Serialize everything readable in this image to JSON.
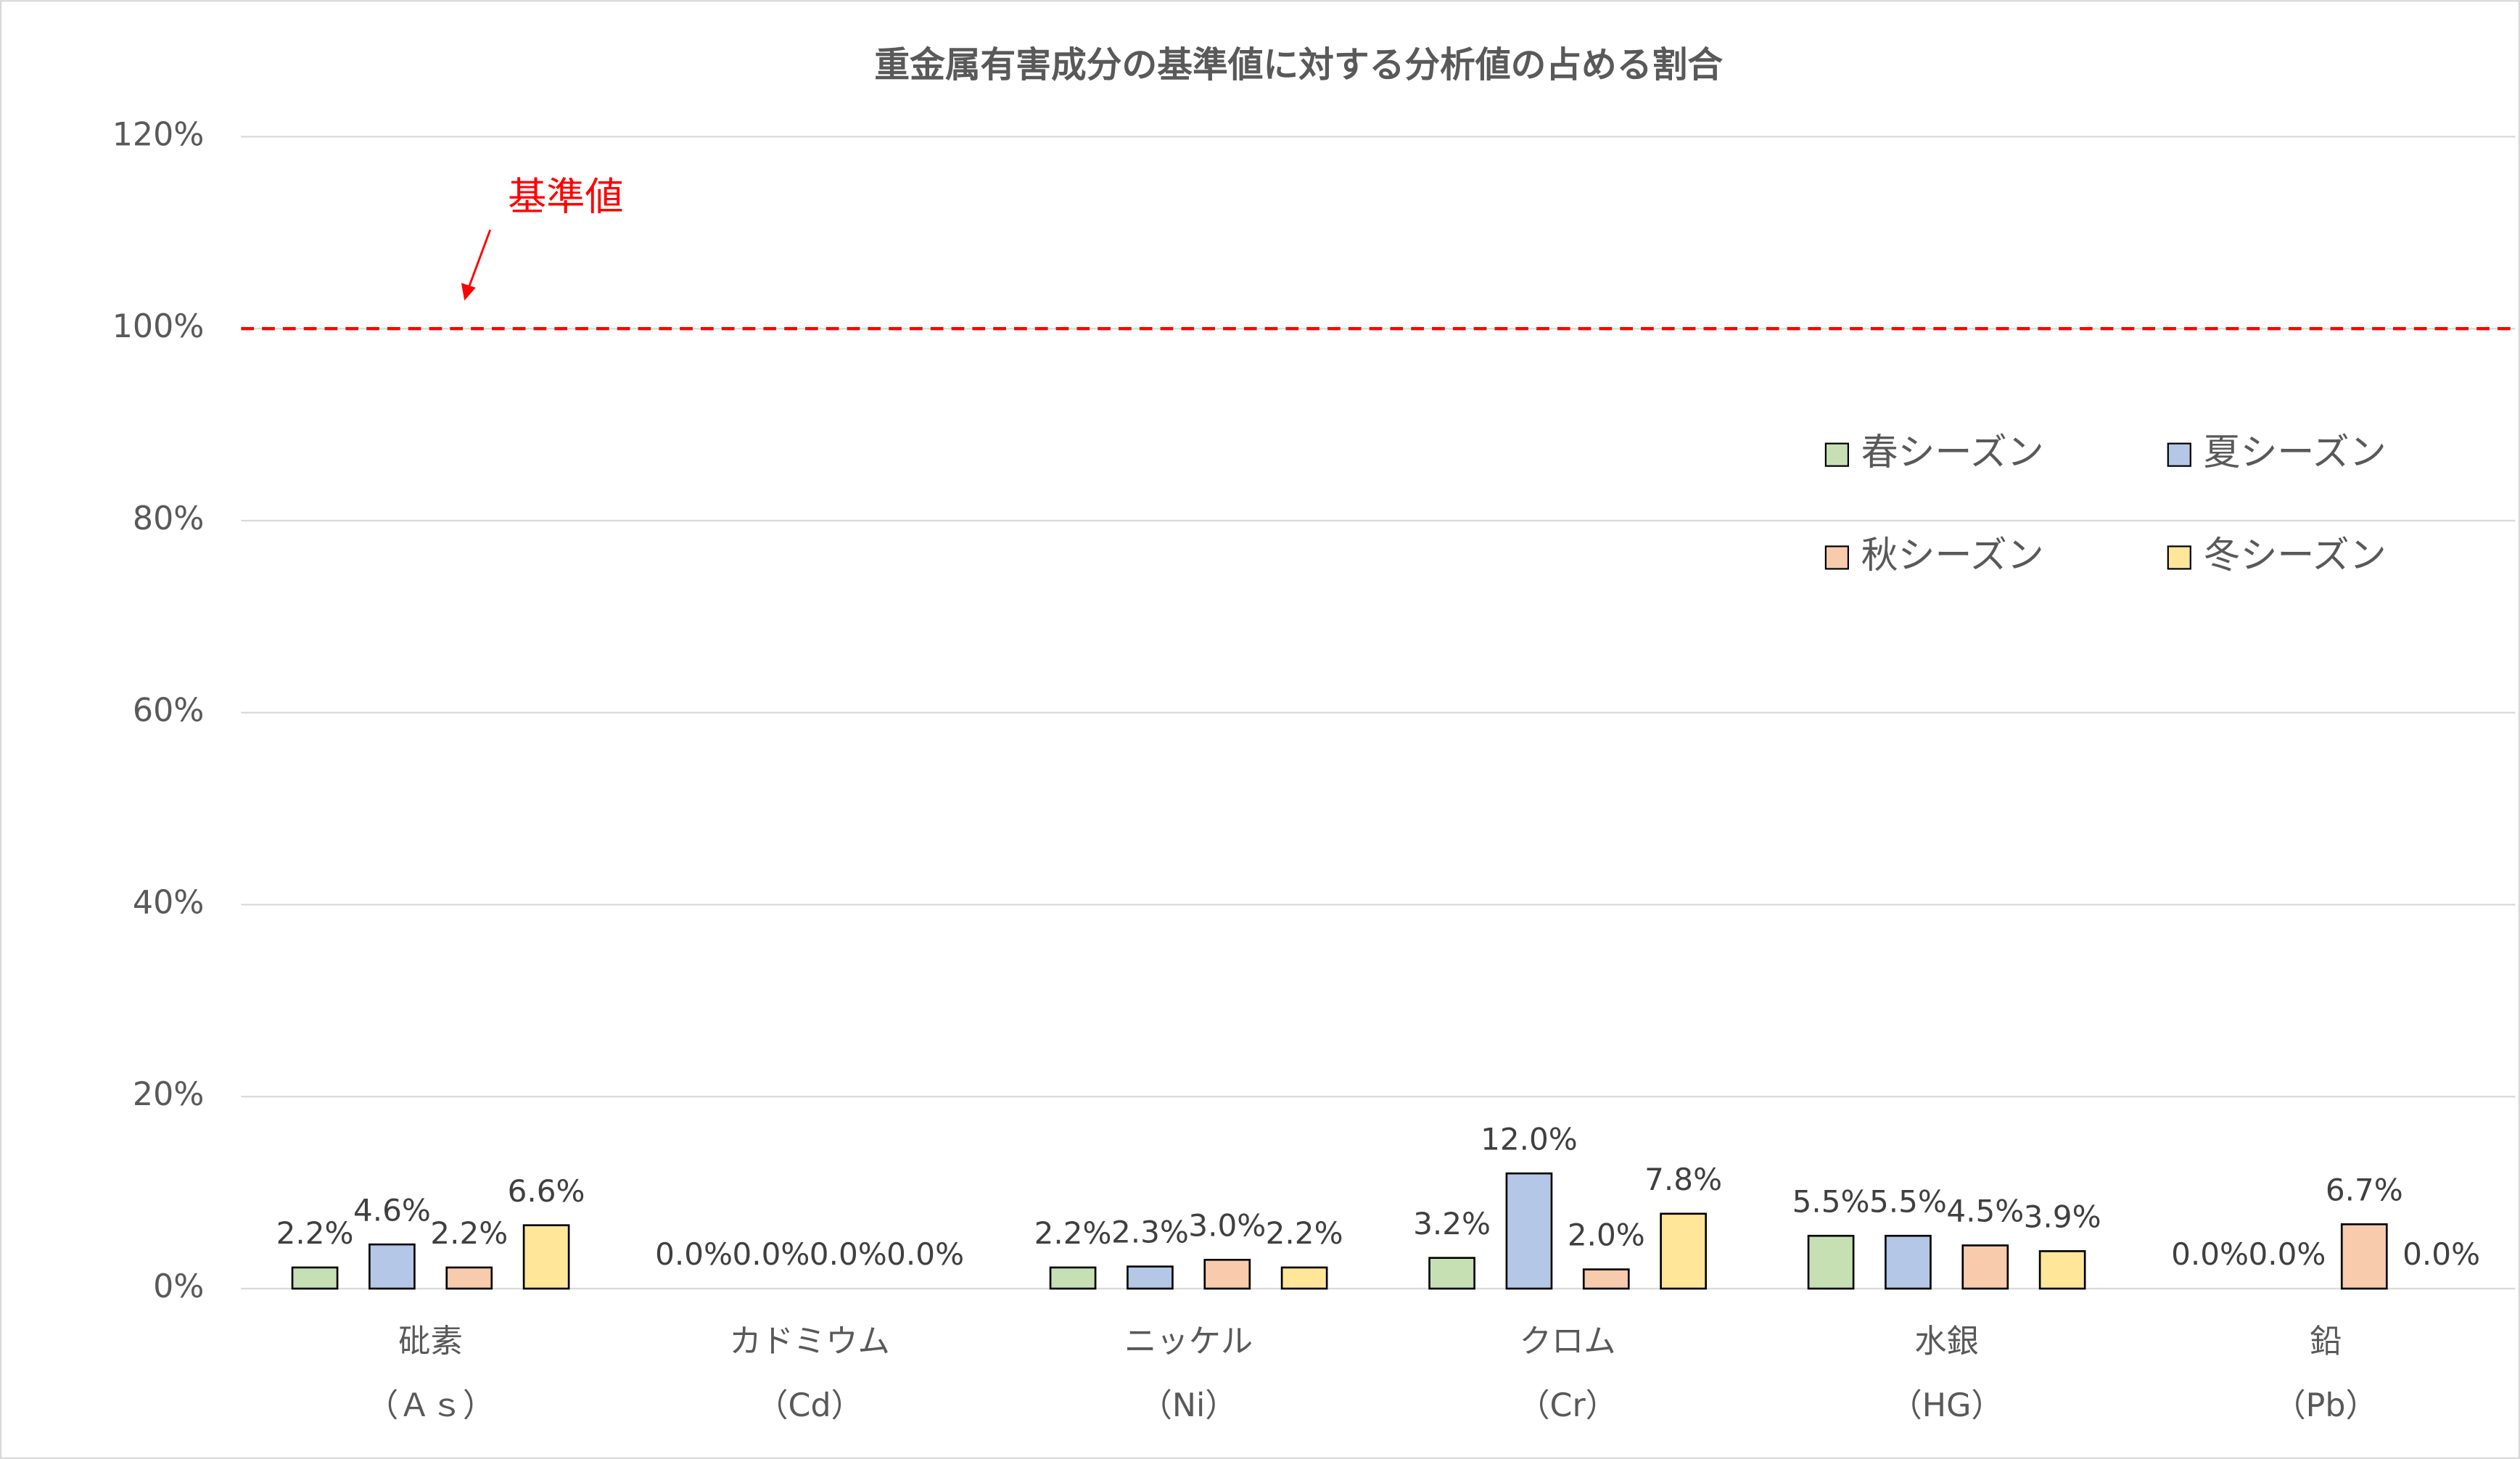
{
  "chart_data": {
    "type": "bar",
    "title": "重金属有害成分の基準値に対する分析値の占める割合",
    "categories": [
      [
        "砒素",
        "（Ａｓ）"
      ],
      [
        "カドミウム",
        "（Cd）"
      ],
      [
        "ニッケル",
        "（Ni）"
      ],
      [
        "クロム",
        "（Cr）"
      ],
      [
        "水銀",
        "（HG）"
      ],
      [
        "鉛",
        "（Pb）"
      ]
    ],
    "series": [
      {
        "name": "春シーズン",
        "color": "#c6e0b4",
        "values": [
          2.2,
          0,
          2.2,
          3.2,
          5.5,
          0
        ],
        "value_labels": [
          "2.2%",
          "0.0%",
          "2.2%",
          "3.2%",
          "5.5%",
          "0.0%"
        ]
      },
      {
        "name": "夏シーズン",
        "color": "#b4c7e7",
        "values": [
          4.6,
          0,
          2.3,
          12,
          5.5,
          0
        ],
        "value_labels": [
          "4.6%",
          "0.0%",
          "2.3%",
          "12.0%",
          "5.5%",
          "0.0%"
        ]
      },
      {
        "name": "秋シーズン",
        "color": "#f8cbad",
        "values": [
          2.2,
          0,
          3,
          2,
          4.5,
          6.7
        ],
        "value_labels": [
          "2.2%",
          "0.0%",
          "3.0%",
          "2.0%",
          "4.5%",
          "6.7%"
        ]
      },
      {
        "name": "冬シーズン",
        "color": "#ffe699",
        "values": [
          6.6,
          0,
          2.2,
          7.8,
          3.9,
          0
        ],
        "value_labels": [
          "6.6%",
          "0.0%",
          "2.2%",
          "7.8%",
          "3.9%",
          "0.0%"
        ]
      }
    ],
    "ylim": [
      0,
      120
    ],
    "yticks": [
      {
        "value": 0,
        "label": "0%"
      },
      {
        "value": 20,
        "label": "20%"
      },
      {
        "value": 40,
        "label": "40%"
      },
      {
        "value": 60,
        "label": "60%"
      },
      {
        "value": 80,
        "label": "80%"
      },
      {
        "value": 100,
        "label": "100%"
      },
      {
        "value": 120,
        "label": "120%"
      }
    ],
    "grid": true,
    "legend_position": "top-right",
    "reference_line": {
      "value": 100,
      "label": "基準値",
      "color": "#ff0000"
    }
  }
}
